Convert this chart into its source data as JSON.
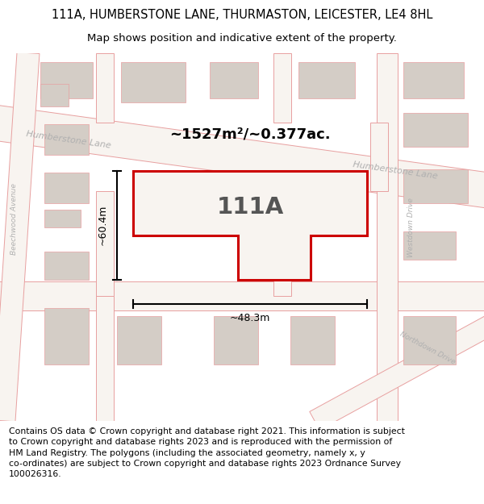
{
  "title_line1": "111A, HUMBERSTONE LANE, THURMASTON, LEICESTER, LE4 8HL",
  "title_line2": "Map shows position and indicative extent of the property.",
  "area_text": "~1527m²/~0.377ac.",
  "label_111A": "111A",
  "dim_height": "~60.4m",
  "dim_width": "~48.3m",
  "road_label_left": "Humberstone Lane",
  "road_label_right": "Humberstone Lane",
  "road_label_beechwood": "Beechwood Avenue",
  "road_label_westdown": "Westdown Drive",
  "road_label_northdown": "Northdown Drive",
  "copyright_text": "Contains OS data © Crown copyright and database right 2021. This information is subject\nto Crown copyright and database rights 2023 and is reproduced with the permission of\nHM Land Registry. The polygons (including the associated geometry, namely x, y\nco-ordinates) are subject to Crown copyright and database rights 2023 Ordnance Survey\n100026316.",
  "bg_color": "#ede8e2",
  "road_color": "#f8f4f0",
  "building_color": "#d4cdc6",
  "plot_line_color": "#cc0000",
  "plot_fill_color": "#f8f4f0",
  "dim_line_color": "#000000",
  "road_line_color": "#e8a0a0",
  "title_fontsize": 10.5,
  "subtitle_fontsize": 9.5,
  "copyright_fontsize": 7.8
}
